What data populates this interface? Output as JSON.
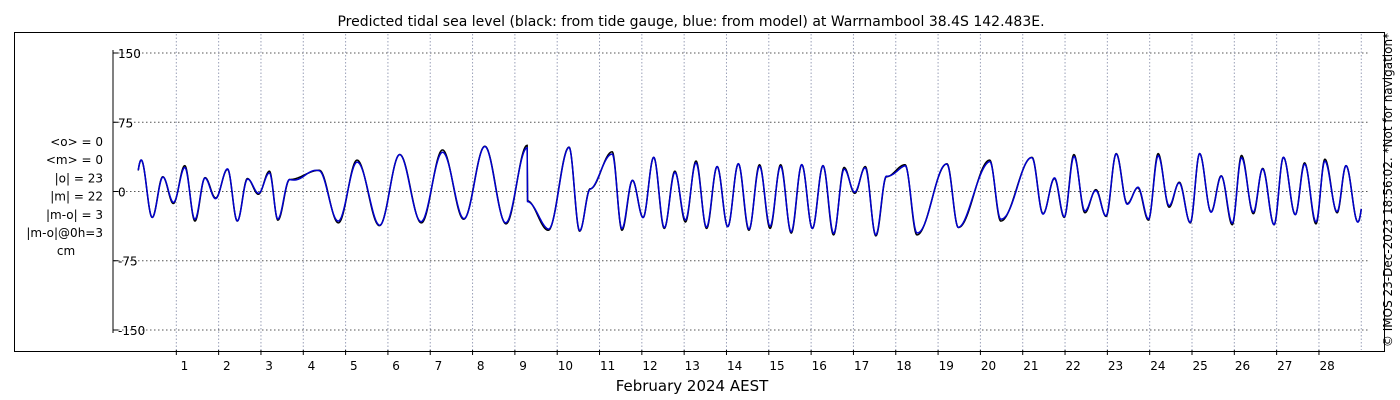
{
  "chart_data": {
    "type": "line",
    "title": "Predicted tidal sea level (black: from tide gauge, blue: from model) at Warrnambool 38.4S 142.483E.",
    "xlabel": "February 2024 AEST",
    "ylabel": "",
    "xlim": [
      0,
      29
    ],
    "ylim": [
      -160,
      160
    ],
    "x_ticks": [
      "1",
      "2",
      "3",
      "4",
      "5",
      "6",
      "7",
      "8",
      "9",
      "10",
      "11",
      "12",
      "13",
      "14",
      "15",
      "16",
      "17",
      "18",
      "19",
      "20",
      "21",
      "22",
      "23",
      "24",
      "25",
      "26",
      "27",
      "28"
    ],
    "y_ticks": [
      {
        "value": 150,
        "label": "150"
      },
      {
        "value": 75,
        "label": "75"
      },
      {
        "value": 0,
        "label": "0"
      },
      {
        "value": -75,
        "label": "-75"
      },
      {
        "value": -150,
        "label": "-150"
      }
    ],
    "grid": true,
    "stats": [
      "<o> = 0",
      "<m> = 0",
      "|o| = 23",
      "|m| = 22",
      "|m-o| = 3",
      "|m-o|@0h=3",
      "cm"
    ],
    "side_note": "© IMOS 23-Dec-2023 18:56:02. *Not for navigation*",
    "series": [
      {
        "name": "tide gauge",
        "color": "#000000"
      },
      {
        "name": "model",
        "color": "#0000cc"
      }
    ],
    "x_start_day": 0.1,
    "x_end_day": 29.0,
    "sample_step_days": 0.01,
    "high_tides": [
      [
        0.17,
        34
      ],
      [
        0.68,
        16
      ],
      [
        1.2,
        28
      ],
      [
        1.68,
        15
      ],
      [
        2.21,
        24
      ],
      [
        2.68,
        14
      ],
      [
        3.2,
        22
      ],
      [
        3.68,
        13
      ],
      [
        4.38,
        23
      ],
      [
        5.27,
        34
      ],
      [
        6.28,
        40
      ],
      [
        7.29,
        45
      ],
      [
        8.29,
        49
      ],
      [
        9.29,
        50
      ],
      [
        10.28,
        48
      ],
      [
        10.78,
        3
      ],
      [
        11.3,
        43
      ],
      [
        11.78,
        12
      ],
      [
        12.28,
        37
      ],
      [
        12.78,
        22
      ],
      [
        13.28,
        33
      ],
      [
        13.78,
        27
      ],
      [
        14.28,
        30
      ],
      [
        14.78,
        29
      ],
      [
        15.28,
        29
      ],
      [
        15.78,
        29
      ],
      [
        16.28,
        28
      ],
      [
        16.78,
        26
      ],
      [
        17.28,
        27
      ],
      [
        17.78,
        16
      ],
      [
        18.22,
        29
      ],
      [
        19.21,
        30
      ],
      [
        20.22,
        34
      ],
      [
        21.22,
        37
      ],
      [
        21.75,
        14
      ],
      [
        22.21,
        40
      ],
      [
        22.73,
        2
      ],
      [
        23.21,
        41
      ],
      [
        23.72,
        4
      ],
      [
        24.2,
        41
      ],
      [
        24.7,
        10
      ],
      [
        25.18,
        41
      ],
      [
        25.69,
        17
      ],
      [
        26.17,
        39
      ],
      [
        26.67,
        25
      ],
      [
        27.16,
        37
      ],
      [
        27.66,
        31
      ],
      [
        28.14,
        35
      ],
      [
        28.64,
        28
      ]
    ],
    "low_tides": [
      [
        0.43,
        -28
      ],
      [
        0.93,
        -13
      ],
      [
        1.44,
        -32
      ],
      [
        1.93,
        -7
      ],
      [
        2.44,
        -32
      ],
      [
        2.94,
        -3
      ],
      [
        3.4,
        -31
      ],
      [
        4.83,
        -34
      ],
      [
        5.8,
        -37
      ],
      [
        6.79,
        -34
      ],
      [
        7.79,
        -30
      ],
      [
        8.79,
        -35
      ],
      [
        9.29,
        -10
      ],
      [
        9.79,
        -42
      ],
      [
        10.53,
        -43
      ],
      [
        11.53,
        -42
      ],
      [
        12.03,
        -28
      ],
      [
        12.53,
        -40
      ],
      [
        13.03,
        -33
      ],
      [
        13.53,
        -40
      ],
      [
        14.03,
        -38
      ],
      [
        14.53,
        -42
      ],
      [
        15.03,
        -40
      ],
      [
        15.53,
        -45
      ],
      [
        16.03,
        -40
      ],
      [
        16.53,
        -47
      ],
      [
        17.03,
        -2
      ],
      [
        17.53,
        -48
      ],
      [
        18.5,
        -47
      ],
      [
        19.48,
        -39
      ],
      [
        20.48,
        -32
      ],
      [
        21.48,
        -24
      ],
      [
        21.98,
        -28
      ],
      [
        22.47,
        -23
      ],
      [
        22.97,
        -27
      ],
      [
        23.47,
        -13
      ],
      [
        23.97,
        -31
      ],
      [
        24.46,
        -17
      ],
      [
        24.96,
        -34
      ],
      [
        25.45,
        -22
      ],
      [
        25.95,
        -36
      ],
      [
        26.45,
        -24
      ],
      [
        26.94,
        -36
      ],
      [
        27.44,
        -25
      ],
      [
        27.93,
        -35
      ],
      [
        28.43,
        -23
      ],
      [
        28.92,
        -33
      ]
    ]
  }
}
